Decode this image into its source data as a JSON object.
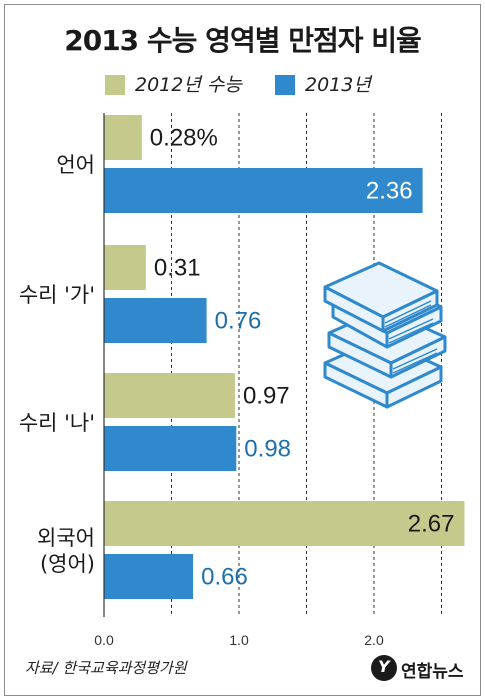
{
  "title": "2013 수능 영역별 만점자 비율",
  "legend": [
    {
      "label": "2012년 수능",
      "color": "#c5c98b"
    },
    {
      "label": "2013년",
      "color": "#2f89cc"
    }
  ],
  "source": "자료/ 한국교육과정평가원",
  "logo_text": "연합뉴스",
  "chart_data": {
    "type": "bar",
    "orientation": "horizontal",
    "title": "2013 수능 영역별 만점자 비율",
    "categories": [
      {
        "lines": [
          "언어"
        ]
      },
      {
        "lines": [
          "수리 '가'"
        ]
      },
      {
        "lines": [
          "수리 '나'"
        ]
      },
      {
        "lines": [
          "외국어",
          "(영어)"
        ]
      }
    ],
    "series": [
      {
        "name": "2012년 수능",
        "color": "#c5c98b",
        "values": [
          0.28,
          0.31,
          0.97,
          2.67
        ],
        "labels": [
          "0.28%",
          "0.31",
          "0.97",
          "2.67"
        ]
      },
      {
        "name": "2013년",
        "color": "#2f89cc",
        "values": [
          2.36,
          0.76,
          0.98,
          0.66
        ],
        "labels": [
          "2.36",
          "0.76",
          "0.98",
          "0.66"
        ]
      }
    ],
    "xlim": [
      0,
      3.0
    ],
    "xticks": [
      {
        "value": 0,
        "label": "0.0"
      },
      {
        "value": 1,
        "label": "1.0"
      },
      {
        "value": 2,
        "label": "2.0"
      }
    ],
    "gridlines": [
      0.5,
      1.0,
      1.5,
      2.0,
      2.5
    ],
    "grid": true,
    "legend_position": "top"
  }
}
